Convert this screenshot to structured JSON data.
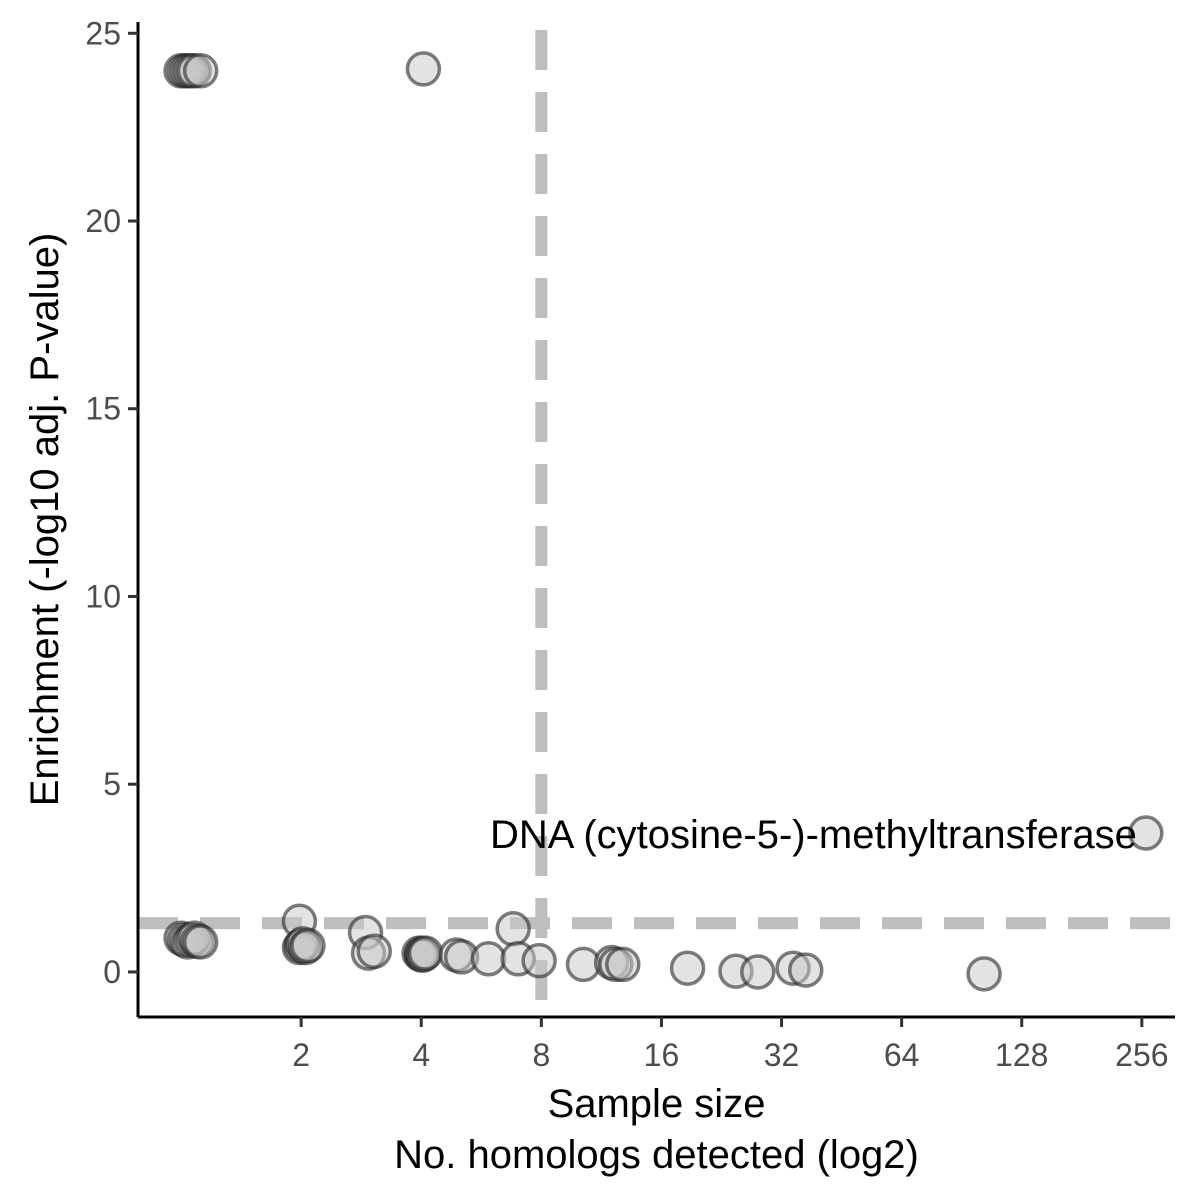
{
  "chart_data": {
    "type": "scatter",
    "title": "",
    "xlabel": "Sample size",
    "xlabel_line2": "No. homologs detected (log2)",
    "ylabel": "Enrichment (-log10 adj. P-value)",
    "x_scale": "log2",
    "xlim": [
      0.78,
      310
    ],
    "ylim": [
      -1.2,
      25.3
    ],
    "x_ticks": [
      2,
      4,
      8,
      16,
      32,
      64,
      128,
      256
    ],
    "x_tick_labels": [
      "2",
      "4",
      "8",
      "16",
      "32",
      "64",
      "128",
      "256"
    ],
    "y_ticks": [
      0,
      5,
      10,
      15,
      20,
      25
    ],
    "y_tick_labels": [
      "0",
      "5",
      "10",
      "15",
      "20",
      "25"
    ],
    "grid": false,
    "reference_lines": {
      "vertical_x": 8,
      "horizontal_y": 1.3,
      "style": "dashed",
      "color": "#bebebe"
    },
    "annotations": [
      {
        "text": "DNA (cytosine-5-)-methyltransferase",
        "x": 256,
        "y": 3.7,
        "anchor": "end"
      }
    ],
    "points": [
      {
        "x": 1,
        "y": 24.0
      },
      {
        "x": 1.02,
        "y": 24.0
      },
      {
        "x": 1.04,
        "y": 24.0
      },
      {
        "x": 1.06,
        "y": 24.0
      },
      {
        "x": 1.08,
        "y": 24.0
      },
      {
        "x": 1.12,
        "y": 24.0
      },
      {
        "x": 4.05,
        "y": 24.05
      },
      {
        "x": 1,
        "y": 0.9
      },
      {
        "x": 1.02,
        "y": 0.85
      },
      {
        "x": 1.04,
        "y": 0.8
      },
      {
        "x": 1.06,
        "y": 0.85
      },
      {
        "x": 1.08,
        "y": 0.9
      },
      {
        "x": 1.1,
        "y": 0.82
      },
      {
        "x": 1.12,
        "y": 0.8
      },
      {
        "x": 1.98,
        "y": 1.35
      },
      {
        "x": 1.98,
        "y": 0.65
      },
      {
        "x": 2.0,
        "y": 0.7
      },
      {
        "x": 2.02,
        "y": 0.75
      },
      {
        "x": 2.05,
        "y": 0.65
      },
      {
        "x": 2.08,
        "y": 0.7
      },
      {
        "x": 2.9,
        "y": 1.05
      },
      {
        "x": 2.95,
        "y": 0.5
      },
      {
        "x": 3.05,
        "y": 0.55
      },
      {
        "x": 3.95,
        "y": 0.5
      },
      {
        "x": 4.0,
        "y": 0.45
      },
      {
        "x": 4.02,
        "y": 0.5
      },
      {
        "x": 4.05,
        "y": 0.45
      },
      {
        "x": 4.1,
        "y": 0.5
      },
      {
        "x": 4.9,
        "y": 0.45
      },
      {
        "x": 5.05,
        "y": 0.4
      },
      {
        "x": 5.9,
        "y": 0.35
      },
      {
        "x": 6.8,
        "y": 1.15
      },
      {
        "x": 7.0,
        "y": 0.35
      },
      {
        "x": 7.9,
        "y": 0.3
      },
      {
        "x": 10.2,
        "y": 0.2
      },
      {
        "x": 12.0,
        "y": 0.25
      },
      {
        "x": 12.3,
        "y": 0.2
      },
      {
        "x": 12.8,
        "y": 0.2
      },
      {
        "x": 18.6,
        "y": 0.1
      },
      {
        "x": 24.6,
        "y": 0.02
      },
      {
        "x": 27.9,
        "y": 0.0
      },
      {
        "x": 34.2,
        "y": 0.1
      },
      {
        "x": 36.8,
        "y": 0.05
      },
      {
        "x": 103,
        "y": -0.05
      },
      {
        "x": 262,
        "y": 3.7
      }
    ]
  }
}
